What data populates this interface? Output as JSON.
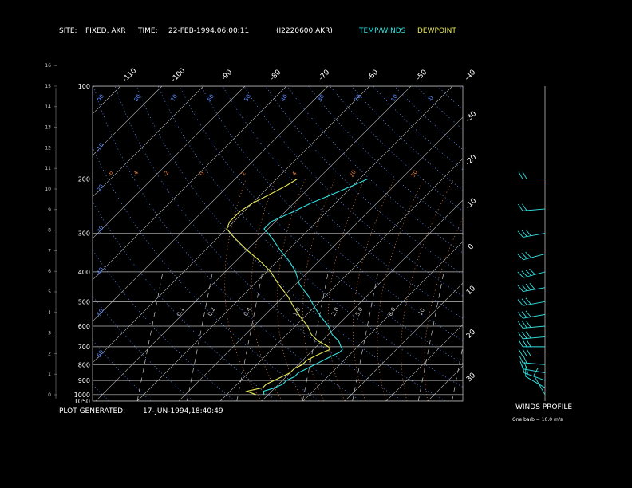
{
  "header": {
    "site_label": "SITE:",
    "site_value": "FIXED, AKR",
    "time_label": "TIME:",
    "time_value": "22-FEB-1994,06:00:11",
    "file_id": "(I2220600.AKR)",
    "legend_temp": "TEMP/WINDS",
    "legend_dew": "DEWPOINT"
  },
  "footer": {
    "generated_label": "PLOT GENERATED:",
    "generated_value": "17-JUN-1994,18:40:49"
  },
  "wind_panel": {
    "title": "WINDS PROFILE",
    "note": "One barb = 10.0 m/s"
  },
  "colors": {
    "temp": "#33e0e0",
    "dew": "#e8e85a",
    "isobar": "#bdbdbd",
    "isotherm": "#bdbdbd",
    "dry_adiabat": "#5b8cff",
    "moist_adiabat": "#e07a3a",
    "mixing_ratio": "#c8c8c8"
  },
  "chart_data": {
    "type": "line",
    "title": "",
    "pressure_levels": [
      "100",
      "200",
      "300",
      "400",
      "500",
      "600",
      "700",
      "800",
      "900",
      "1000",
      "1050"
    ],
    "height_km_ticks": [
      "0",
      "1",
      "2",
      "3",
      "4",
      "5",
      "6",
      "7",
      "8",
      "9",
      "10",
      "11",
      "12",
      "13",
      "14",
      "15",
      "16"
    ],
    "isotherm_top_labels": [
      "-110",
      "-100",
      "-90",
      "-80",
      "-70",
      "-60",
      "-50",
      "-40"
    ],
    "isotherm_right_labels": [
      "-30",
      "-20",
      "-10",
      "0",
      "10",
      "20",
      "30"
    ],
    "dry_adiabat_labels": [
      "90",
      "80",
      "70",
      "60",
      "50",
      "40",
      "30",
      "20",
      "10",
      "0",
      "-10",
      "-20",
      "-30",
      "-40",
      "-50",
      "-60"
    ],
    "moist_adiabat_labels": [
      "-6",
      "-4",
      "-2",
      "0",
      "2",
      "4",
      "20",
      "30"
    ],
    "mixing_ratio_labels": [
      "0.1",
      "0.2",
      "0.4",
      "1.0",
      "2.0",
      "5.0",
      "8.0",
      "10"
    ],
    "series": [
      {
        "name": "TEMP/WINDS",
        "points": [
          {
            "p": 1000,
            "t": -11
          },
          {
            "p": 975,
            "t": -12
          },
          {
            "p": 950,
            "t": -10
          },
          {
            "p": 925,
            "t": -9
          },
          {
            "p": 900,
            "t": -9
          },
          {
            "p": 875,
            "t": -8
          },
          {
            "p": 850,
            "t": -8
          },
          {
            "p": 825,
            "t": -7
          },
          {
            "p": 800,
            "t": -6
          },
          {
            "p": 775,
            "t": -5
          },
          {
            "p": 750,
            "t": -4
          },
          {
            "p": 730,
            "t": -3
          },
          {
            "p": 715,
            "t": -3
          },
          {
            "p": 700,
            "t": -4
          },
          {
            "p": 670,
            "t": -6
          },
          {
            "p": 640,
            "t": -9
          },
          {
            "p": 600,
            "t": -12
          },
          {
            "p": 560,
            "t": -16
          },
          {
            "p": 520,
            "t": -20
          },
          {
            "p": 480,
            "t": -24
          },
          {
            "p": 440,
            "t": -29
          },
          {
            "p": 400,
            "t": -33
          },
          {
            "p": 370,
            "t": -37
          },
          {
            "p": 340,
            "t": -42
          },
          {
            "p": 310,
            "t": -47
          },
          {
            "p": 290,
            "t": -51
          },
          {
            "p": 275,
            "t": -51
          },
          {
            "p": 255,
            "t": -48
          },
          {
            "p": 240,
            "t": -46
          },
          {
            "p": 225,
            "t": -43
          },
          {
            "p": 210,
            "t": -40
          },
          {
            "p": 200,
            "t": -38
          }
        ]
      },
      {
        "name": "DEWPOINT",
        "points": [
          {
            "p": 1000,
            "t": -13
          },
          {
            "p": 975,
            "t": -16
          },
          {
            "p": 950,
            "t": -13
          },
          {
            "p": 925,
            "t": -13
          },
          {
            "p": 900,
            "t": -12
          },
          {
            "p": 875,
            "t": -11
          },
          {
            "p": 850,
            "t": -10
          },
          {
            "p": 825,
            "t": -10
          },
          {
            "p": 800,
            "t": -9
          },
          {
            "p": 775,
            "t": -9
          },
          {
            "p": 750,
            "t": -8
          },
          {
            "p": 730,
            "t": -7
          },
          {
            "p": 715,
            "t": -6
          },
          {
            "p": 700,
            "t": -7
          },
          {
            "p": 670,
            "t": -11
          },
          {
            "p": 640,
            "t": -14
          },
          {
            "p": 600,
            "t": -17
          },
          {
            "p": 560,
            "t": -21
          },
          {
            "p": 520,
            "t": -25
          },
          {
            "p": 480,
            "t": -29
          },
          {
            "p": 440,
            "t": -34
          },
          {
            "p": 400,
            "t": -39
          },
          {
            "p": 370,
            "t": -44
          },
          {
            "p": 340,
            "t": -50
          },
          {
            "p": 310,
            "t": -56
          },
          {
            "p": 290,
            "t": -60
          },
          {
            "p": 275,
            "t": -61
          },
          {
            "p": 255,
            "t": -61
          },
          {
            "p": 240,
            "t": -60
          },
          {
            "p": 225,
            "t": -58
          },
          {
            "p": 210,
            "t": -56
          },
          {
            "p": 200,
            "t": -55
          }
        ]
      }
    ],
    "winds_m_s": [
      {
        "p": 1000,
        "speed": 10,
        "dir": 330
      },
      {
        "p": 950,
        "speed": 10,
        "dir": 300
      },
      {
        "p": 900,
        "speed": 15,
        "dir": 290
      },
      {
        "p": 850,
        "speed": 20,
        "dir": 280
      },
      {
        "p": 800,
        "speed": 20,
        "dir": 275
      },
      {
        "p": 750,
        "speed": 25,
        "dir": 270
      },
      {
        "p": 700,
        "speed": 25,
        "dir": 270
      },
      {
        "p": 650,
        "speed": 25,
        "dir": 265
      },
      {
        "p": 600,
        "speed": 30,
        "dir": 265
      },
      {
        "p": 550,
        "speed": 30,
        "dir": 260
      },
      {
        "p": 500,
        "speed": 30,
        "dir": 260
      },
      {
        "p": 450,
        "speed": 35,
        "dir": 260
      },
      {
        "p": 400,
        "speed": 35,
        "dir": 255
      },
      {
        "p": 350,
        "speed": 30,
        "dir": 255
      },
      {
        "p": 300,
        "speed": 25,
        "dir": 260
      },
      {
        "p": 250,
        "speed": 20,
        "dir": 265
      },
      {
        "p": 200,
        "speed": 20,
        "dir": 270
      }
    ]
  }
}
